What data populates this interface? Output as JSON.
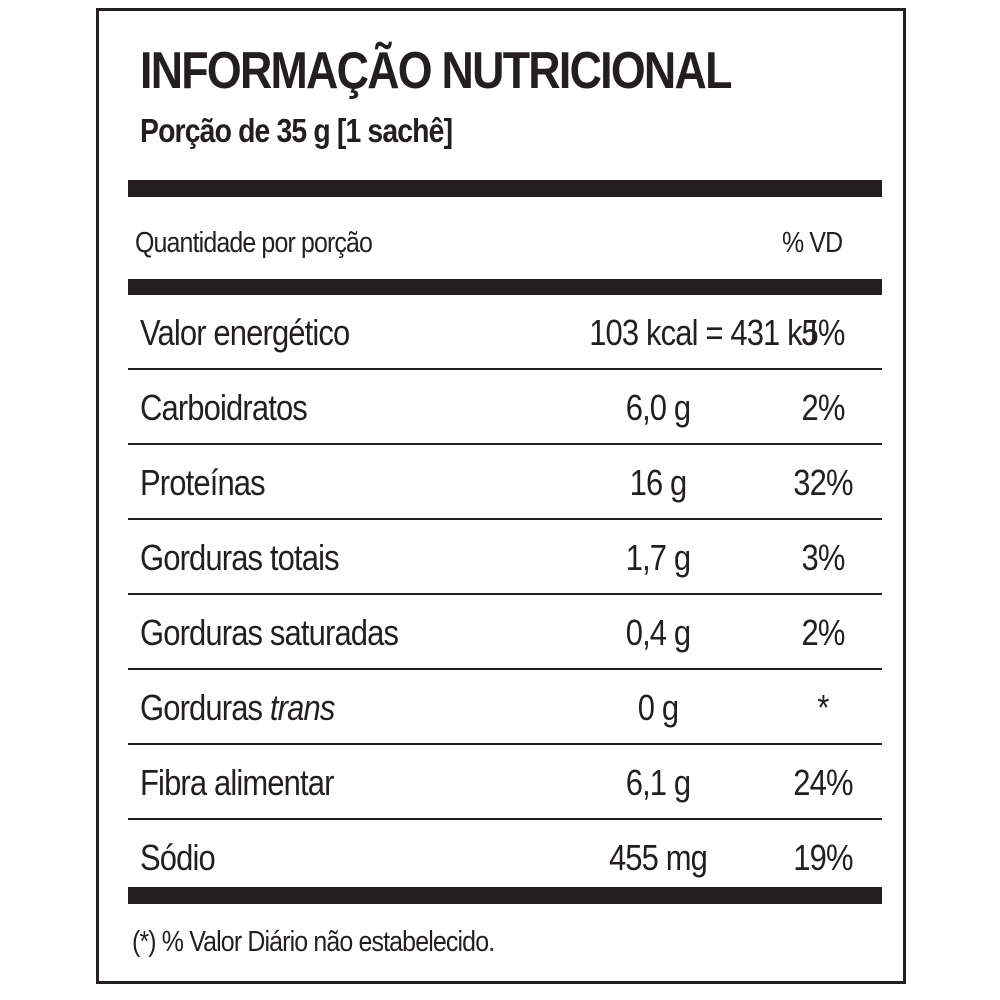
{
  "label": {
    "title": "INFORMAÇÃO NUTRICIONAL",
    "serving": "Porção de 35 g  [1 sachê]",
    "header_left": "Quantidade por porção",
    "header_right": "% VD",
    "rows": [
      {
        "name": "Valor energético",
        "name_italic": "",
        "amount": "103 kcal = 431 kJ",
        "vd": "5%"
      },
      {
        "name": "Carboidratos",
        "name_italic": "",
        "amount": "6,0 g",
        "vd": "2%"
      },
      {
        "name": "Proteínas",
        "name_italic": "",
        "amount": "16 g",
        "vd": "32%"
      },
      {
        "name": "Gorduras totais",
        "name_italic": "",
        "amount": "1,7 g",
        "vd": "3%"
      },
      {
        "name": "Gorduras saturadas",
        "name_italic": "",
        "amount": "0,4 g",
        "vd": "2%"
      },
      {
        "name": "Gorduras ",
        "name_italic": "trans",
        "amount": "0 g",
        "vd": "*"
      },
      {
        "name": "Fibra alimentar",
        "name_italic": "",
        "amount": "6,1 g",
        "vd": "24%"
      },
      {
        "name": "Sódio",
        "name_italic": "",
        "amount": "455 mg",
        "vd": "19%"
      }
    ],
    "footnote": "(*) % Valor Diário não estabelecido."
  }
}
